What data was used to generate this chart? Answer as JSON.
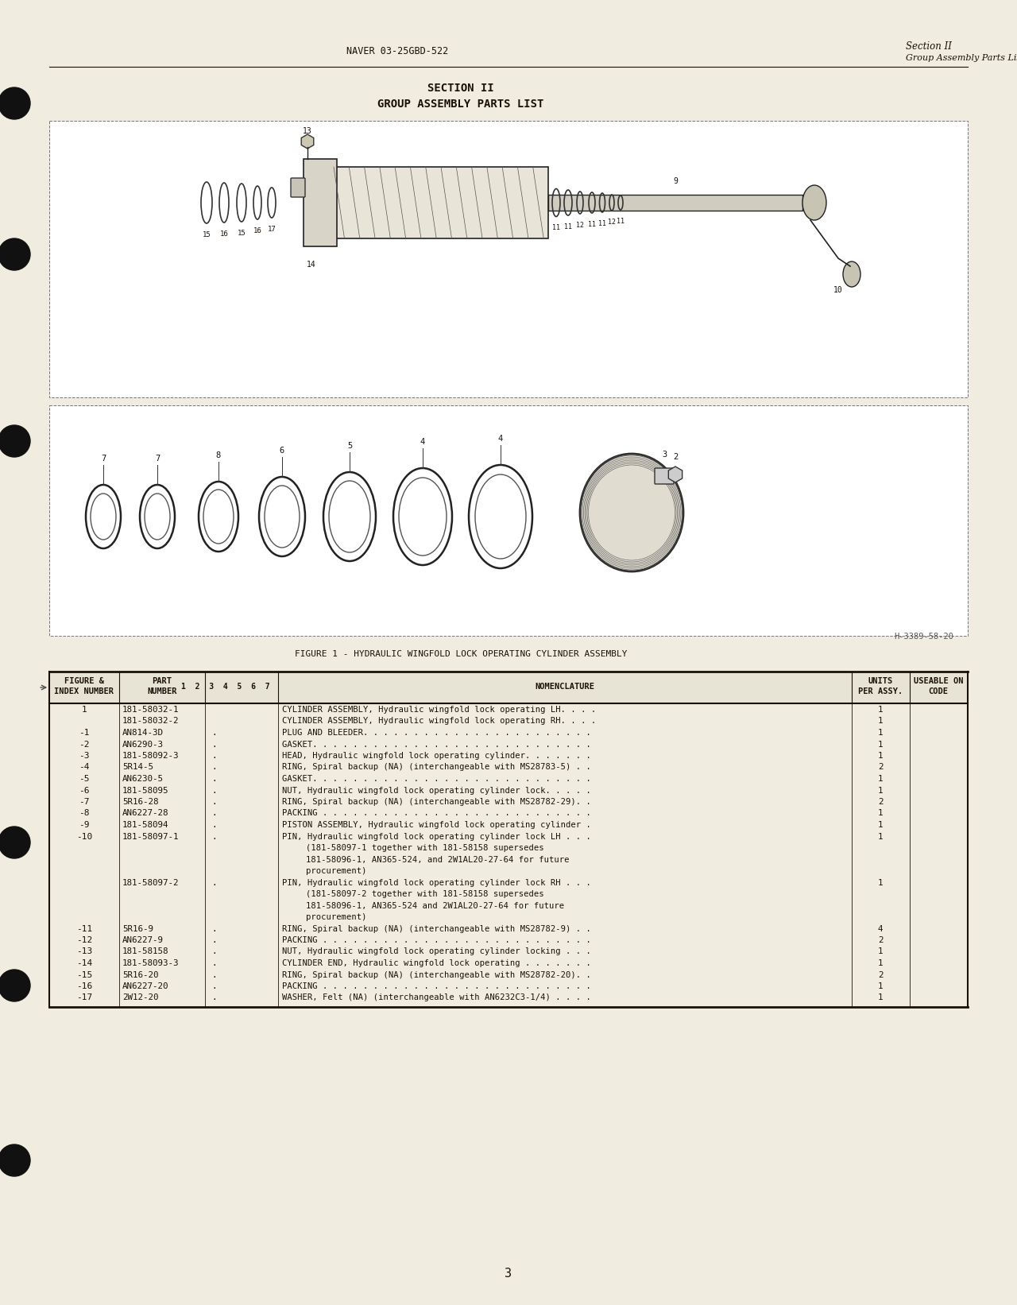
{
  "bg_color": "#f0ece0",
  "text_color": "#1a1008",
  "header_left": "NAVER 03-25GBD-522",
  "header_right_line1": "Section II",
  "header_right_line2": "Group Assembly Parts List",
  "section_title": "SECTION II",
  "section_subtitle": "GROUP ASSEMBLY PARTS LIST",
  "figure_caption": "FIGURE 1 - HYDRAULIC WINGFOLD LOCK OPERATING CYLINDER ASSEMBLY",
  "figure_ref": "H-3389-58-20",
  "page_number": "3",
  "table_rows": [
    [
      "1",
      "181-58032-1",
      "",
      "CYLINDER ASSEMBLY, Hydraulic wingfold lock operating LH. . . .",
      "1"
    ],
    [
      "",
      "181-58032-2",
      "",
      "CYLINDER ASSEMBLY, Hydraulic wingfold lock operating RH. . . .",
      "1"
    ],
    [
      "-1",
      "AN814-3D",
      ".",
      "PLUG AND BLEEDER. . . . . . . . . . . . . . . . . . . . . . .",
      "1"
    ],
    [
      "-2",
      "AN6290-3",
      ".",
      "GASKET. . . . . . . . . . . . . . . . . . . . . . . . . . . .",
      "1"
    ],
    [
      "-3",
      "181-58092-3",
      ".",
      "HEAD, Hydraulic wingfold lock operating cylinder. . . . . . .",
      "1"
    ],
    [
      "-4",
      "5R14-5",
      ".",
      "RING, Spiral backup (NA) (interchangeable with MS28783-5) . .",
      "2"
    ],
    [
      "-5",
      "AN6230-5",
      ".",
      "GASKET. . . . . . . . . . . . . . . . . . . . . . . . . . . .",
      "1"
    ],
    [
      "-6",
      "181-58095",
      ".",
      "NUT, Hydraulic wingfold lock operating cylinder lock. . . . .",
      "1"
    ],
    [
      "-7",
      "5R16-28",
      ".",
      "RING, Spiral backup (NA) (interchangeable with MS28782-29). .",
      "2"
    ],
    [
      "-8",
      "AN6227-28",
      ".",
      "PACKING . . . . . . . . . . . . . . . . . . . . . . . . . . .",
      "1"
    ],
    [
      "-9",
      "181-58094",
      ".",
      "PISTON ASSEMBLY, Hydraulic wingfold lock operating cylinder .",
      "1"
    ],
    [
      "-10",
      "181-58097-1",
      ".",
      "PIN, Hydraulic wingfold lock operating cylinder lock LH . . .",
      "1"
    ],
    [
      "",
      "",
      "",
      "    (181-58097-1 together with 181-58158 supersedes",
      ""
    ],
    [
      "",
      "",
      "",
      "    181-58096-1, AN365-524, and 2W1AL20-27-64 for future",
      ""
    ],
    [
      "",
      "",
      "",
      "    procurement)",
      ""
    ],
    [
      "",
      "181-58097-2",
      ".",
      "PIN, Hydraulic wingfold lock operating cylinder lock RH . . .",
      "1"
    ],
    [
      "",
      "",
      "",
      "    (181-58097-2 together with 181-58158 supersedes",
      ""
    ],
    [
      "",
      "",
      "",
      "    181-58096-1, AN365-524 and 2W1AL20-27-64 for future",
      ""
    ],
    [
      "",
      "",
      "",
      "    procurement)",
      ""
    ],
    [
      "-11",
      "5R16-9",
      ".",
      "RING, Spiral backup (NA) (interchangeable with MS28782-9) . .",
      "4"
    ],
    [
      "-12",
      "AN6227-9",
      ".",
      "PACKING . . . . . . . . . . . . . . . . . . . . . . . . . . .",
      "2"
    ],
    [
      "-13",
      "181-58158",
      ".",
      "NUT, Hydraulic wingfold lock operating cylinder locking . . .",
      "1"
    ],
    [
      "-14",
      "181-58093-3",
      ".",
      "CYLINDER END, Hydraulic wingfold lock operating . . . . . . .",
      "1"
    ],
    [
      "-15",
      "5R16-20",
      ".",
      "RING, Spiral backup (NA) (interchangeable with MS28782-20). .",
      "2"
    ],
    [
      "-16",
      "AN6227-20",
      ".",
      "PACKING . . . . . . . . . . . . . . . . . . . . . . . . . . .",
      "1"
    ],
    [
      "-17",
      "2W12-20",
      ".",
      "WASHER, Felt (NA) (interchangeable with AN6232C3-1/4) . . . .",
      "1"
    ]
  ]
}
